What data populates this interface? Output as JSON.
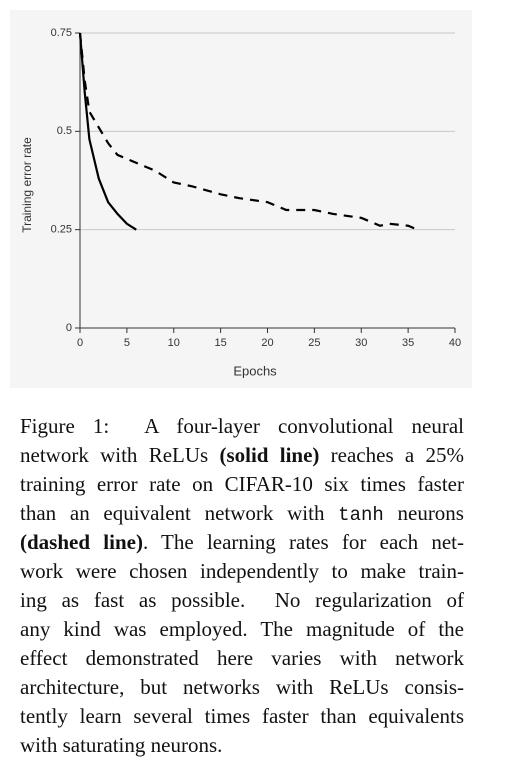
{
  "chart_data": {
    "type": "line",
    "xlabel": "Epochs",
    "ylabel": "Training error rate",
    "xlim": [
      0,
      40
    ],
    "xticks": [
      0,
      5,
      10,
      15,
      20,
      25,
      30,
      35,
      40
    ],
    "ylim": [
      0,
      0.75
    ],
    "yticks": [
      0,
      0.25,
      0.5,
      0.75
    ],
    "grid": true,
    "series": [
      {
        "color": "#000000",
        "dash": false,
        "x": [
          0,
          0.5,
          1,
          2,
          3,
          4,
          5,
          6
        ],
        "values": [
          0.75,
          0.6,
          0.48,
          0.38,
          0.32,
          0.29,
          0.265,
          0.25
        ]
      },
      {
        "color": "#000000",
        "dash": true,
        "x": [
          0,
          0.5,
          1,
          2,
          3,
          4,
          5,
          7,
          8,
          10,
          12,
          15,
          17,
          20,
          22,
          25,
          27,
          30,
          32,
          33,
          35,
          36
        ],
        "values": [
          0.75,
          0.63,
          0.55,
          0.51,
          0.47,
          0.44,
          0.43,
          0.41,
          0.4,
          0.37,
          0.36,
          0.34,
          0.33,
          0.32,
          0.3,
          0.3,
          0.29,
          0.28,
          0.26,
          0.265,
          0.26,
          0.25
        ]
      }
    ]
  },
  "caption": {
    "lines": [
      [
        {
          "text": "Figure 1:  A four-layer convolutional neural"
        }
      ],
      [
        {
          "text": "network with ReLUs "
        },
        {
          "text": "(solid line)",
          "font": "bold"
        },
        {
          "text": " reaches a 25%"
        }
      ],
      [
        {
          "text": "training error rate on CIFAR-10 six times faster"
        }
      ],
      [
        {
          "text": "than an equivalent network with "
        },
        {
          "text": "tanh",
          "font": "mono"
        },
        {
          "text": " neurons"
        }
      ],
      [
        {
          "text": "(dashed line)",
          "font": "bold"
        },
        {
          "text": ". The learning rates for each net-"
        }
      ],
      [
        {
          "text": "work were chosen independently to make train-"
        }
      ],
      [
        {
          "text": "ing as fast as possible.  No regularization of"
        }
      ],
      [
        {
          "text": "any kind was employed. The magnitude of the"
        }
      ],
      [
        {
          "text": "effect demonstrated here varies with network"
        }
      ],
      [
        {
          "text": "architecture, but networks with ReLUs consis-"
        }
      ],
      [
        {
          "text": "tently learn several times faster than equivalents"
        }
      ],
      [
        {
          "text": "with saturating neurons."
        }
      ]
    ]
  }
}
